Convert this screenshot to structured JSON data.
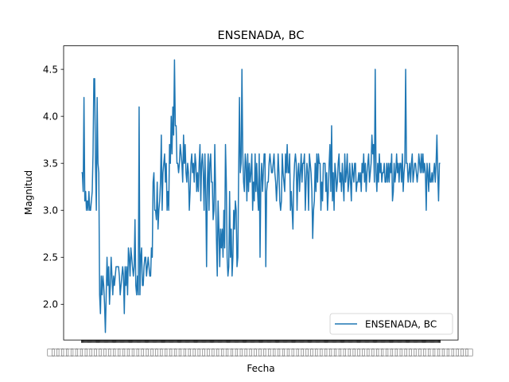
{
  "chart_data": {
    "type": "line",
    "title": "ENSENADA, BC",
    "xlabel": "Fecha",
    "ylabel": "Magnitud",
    "ylim": [
      1.62,
      4.75
    ],
    "yticks": [
      "2.0",
      "2.5",
      "3.0",
      "3.5",
      "4.0",
      "4.5"
    ],
    "x_tick_count": 430,
    "x_tick_labels_note": "overlapping date labels (illegible)",
    "legend": {
      "placement": "lower-right",
      "entries": [
        "ENSENADA, BC"
      ]
    },
    "grid": false,
    "color": "#1f77b4",
    "series": [
      {
        "name": "ENSENADA, BC",
        "values": [
          3.4,
          3.4,
          3.2,
          4.2,
          3.1,
          3.2,
          3.0,
          3.1,
          3.0,
          3.2,
          3.0,
          3.0,
          3.1,
          3.2,
          3.6,
          4.4,
          4.4,
          3.5,
          3.0,
          4.2,
          3.5,
          3.4,
          2.1,
          1.9,
          2.3,
          2.1,
          2.3,
          2.2,
          2.0,
          1.7,
          2.1,
          2.5,
          2.2,
          2.4,
          2.0,
          2.2,
          2.5,
          2.3,
          2.1,
          2.3,
          2.2,
          2.3,
          2.4,
          2.4,
          2.4,
          2.4,
          2.3,
          2.1,
          2.2,
          2.3,
          2.4,
          2.3,
          1.9,
          2.4,
          2.2,
          2.4,
          2.1,
          2.6,
          2.5,
          2.3,
          2.6,
          2.5,
          2.4,
          2.3,
          2.4,
          2.9,
          2.2,
          2.1,
          2.3,
          2.1,
          4.1,
          2.1,
          2.5,
          2.6,
          2.2,
          2.2,
          2.4,
          2.5,
          2.5,
          2.3,
          2.4,
          2.5,
          2.4,
          2.3,
          2.3,
          2.6,
          2.5,
          3.3,
          3.4,
          3.0,
          3.0,
          2.9,
          3.3,
          2.8,
          3.0,
          3.1,
          3.3,
          3.8,
          3.0,
          3.4,
          3.5,
          3.6,
          3.3,
          3.5,
          3.0,
          3.2,
          3.0,
          3.7,
          3.5,
          4.0,
          3.6,
          4.1,
          3.8,
          4.6,
          3.9,
          3.9,
          3.5,
          3.5,
          3.4,
          3.5,
          3.7,
          3.6,
          3.5,
          3.3,
          3.8,
          3.5,
          3.7,
          3.4,
          3.3,
          3.5,
          3.4,
          3.0,
          3.2,
          3.5,
          3.6,
          3.4,
          3.5,
          3.3,
          3.6,
          3.5,
          3.2,
          3.4,
          3.2,
          3.5,
          3.7,
          3.1,
          3.5,
          3.6,
          3.4,
          3.0,
          3.6,
          3.2,
          2.4,
          3.3,
          3.6,
          3.0,
          3.5,
          3.6,
          3.3,
          3.3,
          2.9,
          3.0,
          3.7,
          3.2,
          2.7,
          2.3,
          3.1,
          2.8,
          2.4,
          2.8,
          2.6,
          2.8,
          2.5,
          3.0,
          2.6,
          3.7,
          3.3,
          2.5,
          2.3,
          2.4,
          3.2,
          2.5,
          2.8,
          2.3,
          2.5,
          3.0,
          2.8,
          3.1,
          3.0,
          2.4,
          2.5,
          3.4,
          4.2,
          3.4,
          3.5,
          4.5,
          3.6,
          3.3,
          3.2,
          3.6,
          3.5,
          3.1,
          3.6,
          3.2,
          3.5,
          3.3,
          3.4,
          3.6,
          3.0,
          3.3,
          3.1,
          3.6,
          3.2,
          3.5,
          3.2,
          3.0,
          3.6,
          2.5,
          3.3,
          3.5,
          3.2,
          3.4,
          3.6,
          3.6,
          2.4,
          3.2,
          3.3,
          3.3,
          3.5,
          3.6,
          3.5,
          3.4,
          3.4,
          3.5,
          3.6,
          3.4,
          3.3,
          3.1,
          3.3,
          3.6,
          3.4,
          3.1,
          3.0,
          3.1,
          3.6,
          3.4,
          3.3,
          3.2,
          3.6,
          3.4,
          3.7,
          3.4,
          3.4,
          3.6,
          3.0,
          3.2,
          3.0,
          2.8,
          3.3,
          3.5,
          3.6,
          3.5,
          3.0,
          3.4,
          3.5,
          3.2,
          3.4,
          3.6,
          3.3,
          3.5,
          3.5,
          3.6,
          3.0,
          3.3,
          3.5,
          3.4,
          3.0,
          3.6,
          3.5,
          3.4,
          3.2,
          2.7,
          3.0,
          3.1,
          3.5,
          3.2,
          3.6,
          3.3,
          3.6,
          3.5,
          3.5,
          3.0,
          3.3,
          3.1,
          3.5,
          3.5,
          3.5,
          3.2,
          3.4,
          3.0,
          3.2,
          3.5,
          3.7,
          3.2,
          3.9,
          3.1,
          3.4,
          3.0,
          3.5,
          3.4,
          3.2,
          3.3,
          3.5,
          3.6,
          3.3,
          3.4,
          3.2,
          3.5,
          3.3,
          3.1,
          3.6,
          3.3,
          3.4,
          3.6,
          3.2,
          3.3,
          3.5,
          3.3,
          3.1,
          3.5,
          3.4,
          3.3,
          3.5,
          3.5,
          3.2,
          3.3,
          3.3,
          3.4,
          3.3,
          3.4,
          3.2,
          3.5,
          3.4,
          3.6,
          3.3,
          3.5,
          3.2,
          3.4,
          3.5,
          3.6,
          3.3,
          3.4,
          3.5,
          3.8,
          3.6,
          3.7,
          3.3,
          4.5,
          3.4,
          3.2,
          3.5,
          3.3,
          3.6,
          3.4,
          3.5,
          3.3,
          3.4,
          3.4,
          3.5,
          3.3,
          3.3,
          3.5,
          3.3,
          3.5,
          3.3,
          3.5,
          3.4,
          3.6,
          3.1,
          3.2,
          3.5,
          3.3,
          3.4,
          3.6,
          3.4,
          3.5,
          3.3,
          3.5,
          3.5,
          3.3,
          3.6,
          3.2,
          3.4,
          3.5,
          4.5,
          3.5,
          3.5,
          3.3,
          3.4,
          3.5,
          3.3,
          3.5,
          3.6,
          3.3,
          3.4,
          3.5,
          3.5,
          3.4,
          3.3,
          3.4,
          3.6,
          3.5,
          3.4,
          3.6,
          3.4,
          3.6,
          3.4,
          3.5,
          3.4,
          3.0,
          3.5,
          3.4,
          3.2,
          3.5,
          3.3,
          3.3,
          3.4,
          3.3,
          3.4,
          3.5,
          3.3,
          3.5,
          3.8,
          3.4,
          3.1,
          3.5,
          3.5
        ]
      }
    ]
  }
}
